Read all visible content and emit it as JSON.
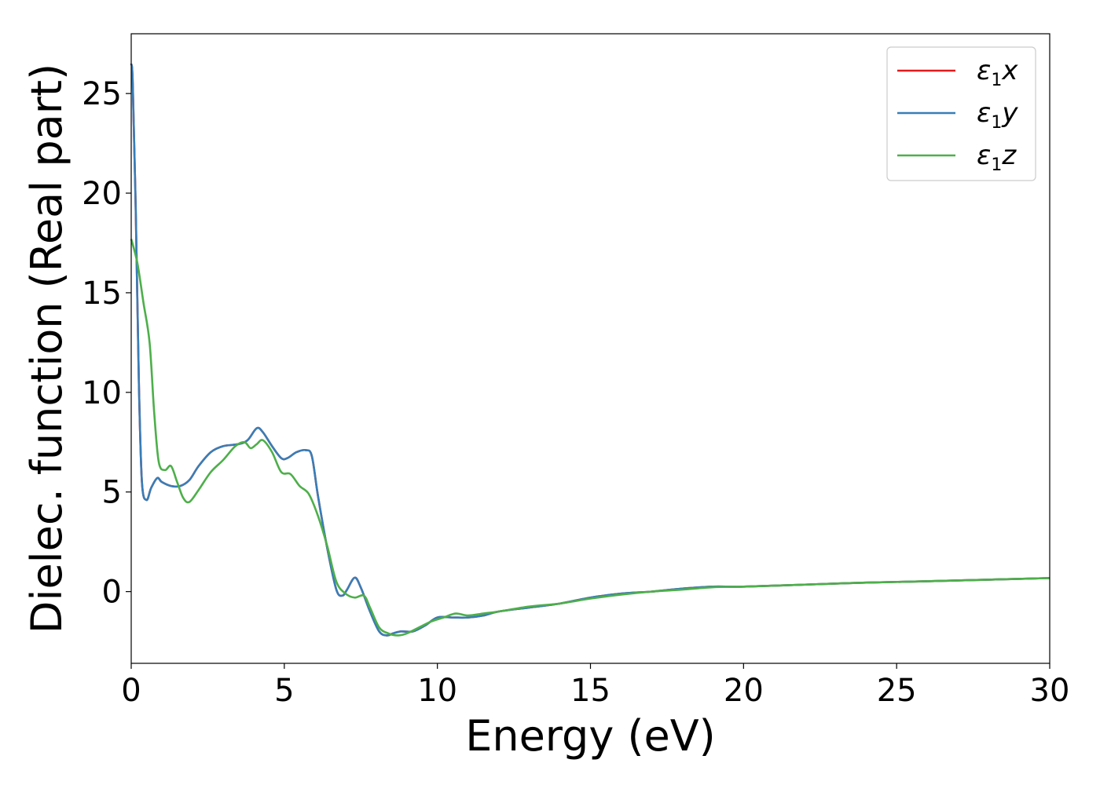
{
  "chart_data": {
    "type": "line",
    "xlabel": "Energy (eV)",
    "ylabel": "Dielec. function (Real part)",
    "xlim": [
      0,
      30
    ],
    "ylim": [
      -3.6,
      28
    ],
    "xticks": [
      0,
      5,
      10,
      15,
      20,
      25,
      30
    ],
    "yticks": [
      0,
      5,
      10,
      15,
      20,
      25
    ],
    "grid": false,
    "legend_position": "top-right",
    "series": [
      {
        "name": "ε1x",
        "label_base": "ε",
        "label_sub": "1",
        "label_tail": "x",
        "color": "#e41a1c",
        "x": [
          0.0,
          0.05,
          0.15,
          0.25,
          0.35,
          0.5,
          0.65,
          0.85,
          1.0,
          1.3,
          1.6,
          1.9,
          2.2,
          2.6,
          3.0,
          3.5,
          3.8,
          4.1,
          4.3,
          4.6,
          4.9,
          5.1,
          5.4,
          5.7,
          5.9,
          6.1,
          6.4,
          6.7,
          6.9,
          7.05,
          7.3,
          7.5,
          7.8,
          8.1,
          8.35,
          8.55,
          8.8,
          9.2,
          9.6,
          10.0,
          10.5,
          11.0,
          11.5,
          12.0,
          13.0,
          14.0,
          15.0,
          16.0,
          17.0,
          18.0,
          19.0,
          20.0,
          22.0,
          24.0,
          26.0,
          28.0,
          30.0
        ],
        "values": [
          26.5,
          25.5,
          19.0,
          10.5,
          5.5,
          4.6,
          5.2,
          5.7,
          5.5,
          5.3,
          5.3,
          5.6,
          6.3,
          7.0,
          7.3,
          7.4,
          7.6,
          8.2,
          8.0,
          7.3,
          6.7,
          6.7,
          7.0,
          7.1,
          6.8,
          4.8,
          2.2,
          0.1,
          -0.2,
          0.1,
          0.7,
          0.2,
          -1.0,
          -2.0,
          -2.2,
          -2.1,
          -2.0,
          -2.0,
          -1.7,
          -1.3,
          -1.3,
          -1.3,
          -1.2,
          -1.0,
          -0.8,
          -0.6,
          -0.3,
          -0.1,
          0.0,
          0.15,
          0.25,
          0.25,
          0.35,
          0.45,
          0.52,
          0.6,
          0.68
        ]
      },
      {
        "name": "ε1y",
        "label_base": "ε",
        "label_sub": "1",
        "label_tail": "y",
        "color": "#377eb8",
        "x": [
          0.0,
          0.05,
          0.15,
          0.25,
          0.35,
          0.5,
          0.65,
          0.85,
          1.0,
          1.3,
          1.6,
          1.9,
          2.2,
          2.6,
          3.0,
          3.5,
          3.8,
          4.1,
          4.3,
          4.6,
          4.9,
          5.1,
          5.4,
          5.7,
          5.9,
          6.1,
          6.4,
          6.7,
          6.9,
          7.05,
          7.3,
          7.5,
          7.8,
          8.1,
          8.35,
          8.55,
          8.8,
          9.2,
          9.6,
          10.0,
          10.5,
          11.0,
          11.5,
          12.0,
          13.0,
          14.0,
          15.0,
          16.0,
          17.0,
          18.0,
          19.0,
          20.0,
          22.0,
          24.0,
          26.0,
          28.0,
          30.0
        ],
        "values": [
          26.5,
          25.5,
          19.0,
          10.5,
          5.5,
          4.6,
          5.2,
          5.7,
          5.5,
          5.3,
          5.3,
          5.6,
          6.3,
          7.0,
          7.3,
          7.4,
          7.6,
          8.2,
          8.0,
          7.3,
          6.7,
          6.7,
          7.0,
          7.1,
          6.8,
          4.8,
          2.2,
          0.1,
          -0.2,
          0.1,
          0.7,
          0.2,
          -1.0,
          -2.0,
          -2.2,
          -2.1,
          -2.0,
          -2.0,
          -1.7,
          -1.3,
          -1.3,
          -1.3,
          -1.2,
          -1.0,
          -0.8,
          -0.6,
          -0.3,
          -0.1,
          0.0,
          0.15,
          0.25,
          0.25,
          0.35,
          0.45,
          0.52,
          0.6,
          0.68
        ]
      },
      {
        "name": "ε1z",
        "label_base": "ε",
        "label_sub": "1",
        "label_tail": "z",
        "color": "#4daf4a",
        "x": [
          0.0,
          0.2,
          0.4,
          0.6,
          0.75,
          0.9,
          1.1,
          1.3,
          1.5,
          1.7,
          1.9,
          2.2,
          2.6,
          3.0,
          3.4,
          3.7,
          3.9,
          4.1,
          4.3,
          4.6,
          4.9,
          5.2,
          5.5,
          5.8,
          6.1,
          6.4,
          6.7,
          7.0,
          7.3,
          7.6,
          7.8,
          8.1,
          8.4,
          8.7,
          9.0,
          9.4,
          9.8,
          10.2,
          10.6,
          11.0,
          11.5,
          12.0,
          13.0,
          14.0,
          15.0,
          16.0,
          17.0,
          18.0,
          19.0,
          20.0,
          22.0,
          24.0,
          26.0,
          28.0,
          30.0
        ],
        "values": [
          17.7,
          16.5,
          14.5,
          12.5,
          9.0,
          6.5,
          6.1,
          6.3,
          5.5,
          4.7,
          4.5,
          5.1,
          6.0,
          6.6,
          7.3,
          7.5,
          7.2,
          7.4,
          7.6,
          7.0,
          6.0,
          5.9,
          5.3,
          4.9,
          3.8,
          2.3,
          0.5,
          -0.1,
          -0.3,
          -0.2,
          -0.8,
          -1.8,
          -2.1,
          -2.2,
          -2.1,
          -1.8,
          -1.5,
          -1.3,
          -1.1,
          -1.2,
          -1.1,
          -1.0,
          -0.75,
          -0.6,
          -0.35,
          -0.15,
          0.0,
          0.1,
          0.22,
          0.25,
          0.35,
          0.45,
          0.52,
          0.6,
          0.68
        ]
      }
    ]
  }
}
